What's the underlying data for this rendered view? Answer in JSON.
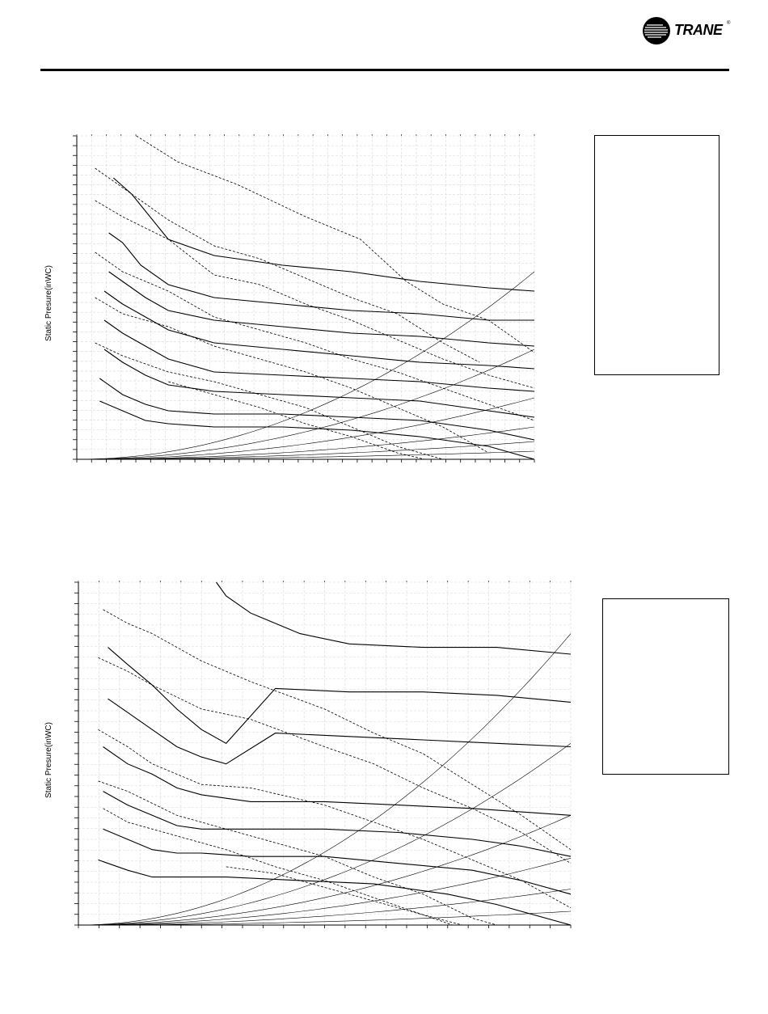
{
  "brand": {
    "name": "TRANE",
    "registered": "®"
  },
  "chart_data": [
    {
      "type": "line",
      "ylabel": "Static Presure(inWC)",
      "xlabel": "",
      "grid": true,
      "legend": "right",
      "xlim": [
        0,
        1
      ],
      "ylim": [
        0,
        1
      ],
      "xticks": 31,
      "yticks": 33,
      "series": [
        {
          "style": "solid",
          "x": [
            0.08,
            0.12,
            0.2,
            0.3,
            0.45,
            0.6,
            0.75,
            0.9,
            1.0
          ],
          "y": [
            0.87,
            0.82,
            0.68,
            0.63,
            0.6,
            0.58,
            0.55,
            0.53,
            0.52
          ]
        },
        {
          "style": "solid",
          "x": [
            0.07,
            0.1,
            0.14,
            0.2,
            0.3,
            0.45,
            0.6,
            0.75,
            0.9,
            1.0
          ],
          "y": [
            0.7,
            0.67,
            0.6,
            0.54,
            0.5,
            0.48,
            0.46,
            0.45,
            0.43,
            0.43
          ]
        },
        {
          "style": "solid",
          "x": [
            0.07,
            0.1,
            0.15,
            0.2,
            0.3,
            0.45,
            0.6,
            0.75,
            0.9,
            1.0
          ],
          "y": [
            0.58,
            0.55,
            0.5,
            0.46,
            0.43,
            0.41,
            0.39,
            0.38,
            0.36,
            0.35
          ]
        },
        {
          "style": "solid",
          "x": [
            0.06,
            0.1,
            0.15,
            0.2,
            0.3,
            0.45,
            0.6,
            0.75,
            0.9,
            1.0
          ],
          "y": [
            0.52,
            0.48,
            0.44,
            0.4,
            0.36,
            0.34,
            0.32,
            0.3,
            0.29,
            0.28
          ]
        },
        {
          "style": "solid",
          "x": [
            0.06,
            0.1,
            0.15,
            0.2,
            0.3,
            0.45,
            0.6,
            0.75,
            0.9,
            1.0
          ],
          "y": [
            0.43,
            0.39,
            0.35,
            0.31,
            0.27,
            0.26,
            0.25,
            0.24,
            0.22,
            0.21
          ]
        },
        {
          "style": "solid",
          "x": [
            0.06,
            0.1,
            0.15,
            0.2,
            0.3,
            0.45,
            0.6,
            0.75,
            0.9,
            1.0
          ],
          "y": [
            0.34,
            0.3,
            0.26,
            0.23,
            0.21,
            0.2,
            0.19,
            0.18,
            0.15,
            0.13
          ]
        },
        {
          "style": "solid",
          "x": [
            0.05,
            0.1,
            0.15,
            0.2,
            0.3,
            0.45,
            0.6,
            0.75,
            0.9,
            1.0
          ],
          "y": [
            0.25,
            0.2,
            0.17,
            0.15,
            0.14,
            0.14,
            0.13,
            0.12,
            0.09,
            0.06
          ]
        },
        {
          "style": "solid",
          "x": [
            0.05,
            0.1,
            0.15,
            0.2,
            0.3,
            0.45,
            0.6,
            0.75,
            0.9,
            1.0
          ],
          "y": [
            0.18,
            0.15,
            0.12,
            0.11,
            0.1,
            0.1,
            0.09,
            0.07,
            0.04,
            0.0
          ]
        },
        {
          "style": "dashed",
          "x": [
            0.13,
            0.22,
            0.35,
            0.5,
            0.62,
            0.72,
            0.8,
            0.9,
            1.0
          ],
          "y": [
            1.0,
            0.92,
            0.85,
            0.75,
            0.68,
            0.55,
            0.48,
            0.43,
            0.33
          ]
        },
        {
          "style": "dashed",
          "x": [
            0.04,
            0.1,
            0.2,
            0.3,
            0.4,
            0.5,
            0.6,
            0.7,
            0.8,
            0.88
          ],
          "y": [
            0.9,
            0.84,
            0.74,
            0.66,
            0.62,
            0.56,
            0.5,
            0.45,
            0.36,
            0.3
          ]
        },
        {
          "style": "dashed",
          "x": [
            0.04,
            0.1,
            0.2,
            0.3,
            0.4,
            0.5,
            0.6,
            0.7,
            0.8,
            0.9,
            1.0
          ],
          "y": [
            0.8,
            0.75,
            0.68,
            0.57,
            0.54,
            0.48,
            0.43,
            0.37,
            0.31,
            0.26,
            0.22
          ]
        },
        {
          "style": "dashed",
          "x": [
            0.04,
            0.1,
            0.2,
            0.3,
            0.4,
            0.5,
            0.6,
            0.7,
            0.8,
            0.9,
            1.0
          ],
          "y": [
            0.64,
            0.58,
            0.52,
            0.44,
            0.4,
            0.36,
            0.31,
            0.27,
            0.22,
            0.17,
            0.12
          ]
        },
        {
          "style": "dashed",
          "x": [
            0.04,
            0.1,
            0.2,
            0.3,
            0.4,
            0.5,
            0.6,
            0.7,
            0.8,
            0.9
          ],
          "y": [
            0.5,
            0.45,
            0.41,
            0.35,
            0.31,
            0.27,
            0.22,
            0.16,
            0.1,
            0.02
          ]
        },
        {
          "style": "dashed",
          "x": [
            0.04,
            0.1,
            0.2,
            0.3,
            0.4,
            0.5,
            0.6,
            0.7,
            0.8
          ],
          "y": [
            0.36,
            0.32,
            0.27,
            0.24,
            0.2,
            0.16,
            0.1,
            0.04,
            0.0
          ]
        },
        {
          "style": "dashed",
          "x": [
            0.2,
            0.3,
            0.4,
            0.5,
            0.6,
            0.7,
            0.76
          ],
          "y": [
            0.24,
            0.2,
            0.16,
            0.11,
            0.07,
            0.02,
            0.0
          ]
        },
        {
          "style": "system",
          "k": 0.58
        },
        {
          "style": "system",
          "k": 0.34
        },
        {
          "style": "system",
          "k": 0.19
        },
        {
          "style": "system",
          "k": 0.1
        },
        {
          "style": "system",
          "k": 0.055
        },
        {
          "style": "system",
          "k": 0.025
        }
      ]
    },
    {
      "type": "line",
      "ylabel": "Static Presure(inWC)",
      "xlabel": "",
      "grid": true,
      "legend": "right",
      "xlim": [
        0,
        1
      ],
      "ylim": [
        0,
        1
      ],
      "xticks": 24,
      "yticks": 32,
      "series": [
        {
          "style": "solid",
          "x": [
            0.28,
            0.3,
            0.35,
            0.45,
            0.55,
            0.7,
            0.85,
            1.0
          ],
          "y": [
            1.0,
            0.96,
            0.91,
            0.85,
            0.82,
            0.81,
            0.81,
            0.79
          ]
        },
        {
          "style": "solid",
          "x": [
            0.06,
            0.1,
            0.15,
            0.2,
            0.25,
            0.3,
            0.4,
            0.55,
            0.7,
            0.85,
            1.0
          ],
          "y": [
            0.81,
            0.76,
            0.7,
            0.63,
            0.57,
            0.53,
            0.69,
            0.68,
            0.68,
            0.67,
            0.65
          ]
        },
        {
          "style": "solid",
          "x": [
            0.06,
            0.1,
            0.15,
            0.2,
            0.25,
            0.3,
            0.4,
            0.55,
            0.7,
            0.85,
            1.0
          ],
          "y": [
            0.66,
            0.62,
            0.57,
            0.52,
            0.49,
            0.47,
            0.56,
            0.55,
            0.54,
            0.53,
            0.52
          ]
        },
        {
          "style": "solid",
          "x": [
            0.05,
            0.1,
            0.15,
            0.2,
            0.25,
            0.35,
            0.5,
            0.65,
            0.8,
            0.9,
            1.0
          ],
          "y": [
            0.52,
            0.47,
            0.44,
            0.4,
            0.38,
            0.36,
            0.36,
            0.35,
            0.34,
            0.33,
            0.32
          ]
        },
        {
          "style": "solid",
          "x": [
            0.05,
            0.1,
            0.15,
            0.2,
            0.25,
            0.35,
            0.5,
            0.65,
            0.8,
            0.9,
            1.0
          ],
          "y": [
            0.39,
            0.35,
            0.32,
            0.29,
            0.28,
            0.28,
            0.28,
            0.27,
            0.25,
            0.23,
            0.2
          ]
        },
        {
          "style": "solid",
          "x": [
            0.05,
            0.1,
            0.15,
            0.2,
            0.25,
            0.35,
            0.5,
            0.65,
            0.8,
            0.9,
            1.0
          ],
          "y": [
            0.28,
            0.25,
            0.22,
            0.21,
            0.21,
            0.2,
            0.2,
            0.18,
            0.16,
            0.13,
            0.09
          ]
        },
        {
          "style": "solid",
          "x": [
            0.04,
            0.1,
            0.15,
            0.2,
            0.3,
            0.45,
            0.6,
            0.75,
            0.85,
            1.0
          ],
          "y": [
            0.19,
            0.16,
            0.14,
            0.14,
            0.14,
            0.13,
            0.12,
            0.09,
            0.06,
            0.0
          ]
        },
        {
          "style": "dashed",
          "x": [
            0.05,
            0.1,
            0.15,
            0.25,
            0.35,
            0.5,
            0.6,
            0.7,
            0.8,
            0.9,
            1.0
          ],
          "y": [
            0.92,
            0.88,
            0.85,
            0.77,
            0.71,
            0.63,
            0.56,
            0.5,
            0.41,
            0.32,
            0.22
          ]
        },
        {
          "style": "dashed",
          "x": [
            0.04,
            0.1,
            0.15,
            0.25,
            0.35,
            0.5,
            0.6,
            0.7,
            0.8,
            0.9,
            1.0
          ],
          "y": [
            0.78,
            0.74,
            0.7,
            0.63,
            0.6,
            0.52,
            0.47,
            0.4,
            0.34,
            0.27,
            0.18
          ]
        },
        {
          "style": "dashed",
          "x": [
            0.04,
            0.1,
            0.15,
            0.25,
            0.35,
            0.5,
            0.6,
            0.7,
            0.8,
            0.9,
            1.0
          ],
          "y": [
            0.57,
            0.52,
            0.47,
            0.41,
            0.4,
            0.35,
            0.3,
            0.25,
            0.19,
            0.13,
            0.05
          ]
        },
        {
          "style": "dashed",
          "x": [
            0.04,
            0.1,
            0.2,
            0.3,
            0.4,
            0.5,
            0.6,
            0.7,
            0.8,
            0.85
          ],
          "y": [
            0.42,
            0.39,
            0.32,
            0.28,
            0.24,
            0.2,
            0.14,
            0.09,
            0.02,
            0.0
          ]
        },
        {
          "style": "dashed",
          "x": [
            0.05,
            0.1,
            0.2,
            0.3,
            0.4,
            0.5,
            0.6,
            0.7,
            0.76
          ],
          "y": [
            0.34,
            0.3,
            0.26,
            0.22,
            0.17,
            0.13,
            0.08,
            0.03,
            0.0
          ]
        },
        {
          "style": "dashed",
          "x": [
            0.3,
            0.4,
            0.5,
            0.6,
            0.7,
            0.78
          ],
          "y": [
            0.17,
            0.15,
            0.11,
            0.07,
            0.03,
            0.0
          ]
        },
        {
          "style": "system",
          "k": 0.85
        },
        {
          "style": "system",
          "k": 0.53
        },
        {
          "style": "system",
          "k": 0.32
        },
        {
          "style": "system",
          "k": 0.195
        },
        {
          "style": "system",
          "k": 0.105
        },
        {
          "style": "system",
          "k": 0.04
        }
      ]
    }
  ]
}
